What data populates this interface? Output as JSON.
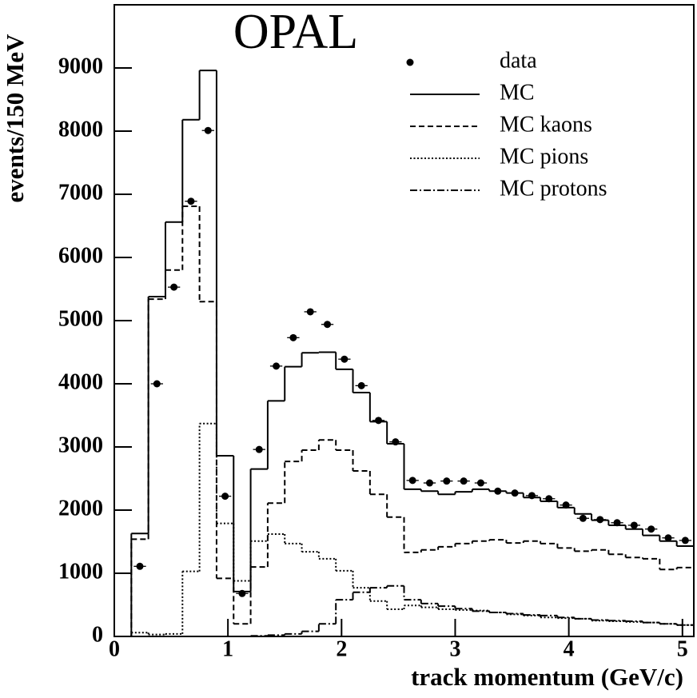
{
  "chart_data": {
    "type": "histogram",
    "annotation": "OPAL",
    "xlabel": "track momentum (GeV/c)",
    "ylabel": "events/150 MeV",
    "bins": [
      0.15,
      0.3,
      0.45,
      0.6,
      0.75,
      0.9,
      1.05,
      1.2,
      1.35,
      1.5,
      1.65,
      1.8,
      1.95,
      2.1,
      2.25,
      2.4,
      2.55,
      2.7,
      2.85,
      3.0,
      3.15,
      3.3,
      3.45,
      3.6,
      3.75,
      3.9,
      4.05,
      4.2,
      4.35,
      4.5,
      4.65,
      4.8,
      4.95,
      5.1
    ],
    "xlim": [
      0,
      5.1
    ],
    "xticks": [
      0,
      1,
      2,
      3,
      4,
      5
    ],
    "ylim": [
      0,
      10000
    ],
    "yticks": [
      0,
      1000,
      2000,
      3000,
      4000,
      5000,
      6000,
      7000,
      8000,
      9000
    ],
    "series": [
      {
        "name": "data",
        "color": "#000000",
        "line_style": "points",
        "values": [
          1110,
          4000,
          5530,
          6890,
          8010,
          2220,
          680,
          2960,
          4280,
          4730,
          5140,
          4940,
          4390,
          3970,
          3420,
          3080,
          2470,
          2430,
          2460,
          2460,
          2430,
          2300,
          2270,
          2230,
          2180,
          2080,
          1870,
          1850,
          1800,
          1760,
          1700,
          1560,
          1520
        ]
      },
      {
        "name": "MC",
        "color": "#000000",
        "line_style": "solid",
        "values": [
          1630,
          5380,
          6560,
          8180,
          8960,
          2860,
          710,
          2650,
          3730,
          4270,
          4490,
          4500,
          4230,
          3860,
          3400,
          3050,
          2330,
          2300,
          2250,
          2290,
          2330,
          2300,
          2270,
          2200,
          2140,
          2040,
          1940,
          1840,
          1760,
          1700,
          1600,
          1510,
          1430
        ]
      },
      {
        "name": "MC kaons",
        "color": "#000000",
        "line_style": "dashed",
        "values": [
          1540,
          5340,
          5800,
          6810,
          5300,
          920,
          200,
          1100,
          2110,
          2770,
          2950,
          3110,
          2950,
          2620,
          2250,
          1890,
          1330,
          1370,
          1420,
          1470,
          1510,
          1530,
          1480,
          1510,
          1470,
          1400,
          1350,
          1370,
          1300,
          1250,
          1230,
          1060,
          1090
        ]
      },
      {
        "name": "MC pions",
        "color": "#000000",
        "line_style": "dotted",
        "values": [
          60,
          30,
          40,
          1030,
          3370,
          1790,
          880,
          1510,
          1620,
          1470,
          1340,
          1230,
          1040,
          770,
          560,
          430,
          490,
          460,
          430,
          420,
          410,
          380,
          350,
          330,
          300,
          290,
          280,
          250,
          240,
          230,
          220,
          200,
          180
        ]
      },
      {
        "name": "MC protons",
        "color": "#000000",
        "line_style": "dashdot",
        "values": [
          0,
          0,
          0,
          0,
          0,
          0,
          0,
          10,
          20,
          40,
          80,
          200,
          580,
          700,
          770,
          800,
          580,
          520,
          480,
          440,
          400,
          380,
          360,
          340,
          330,
          300,
          280,
          260,
          250,
          240,
          220,
          200,
          180
        ]
      }
    ]
  }
}
